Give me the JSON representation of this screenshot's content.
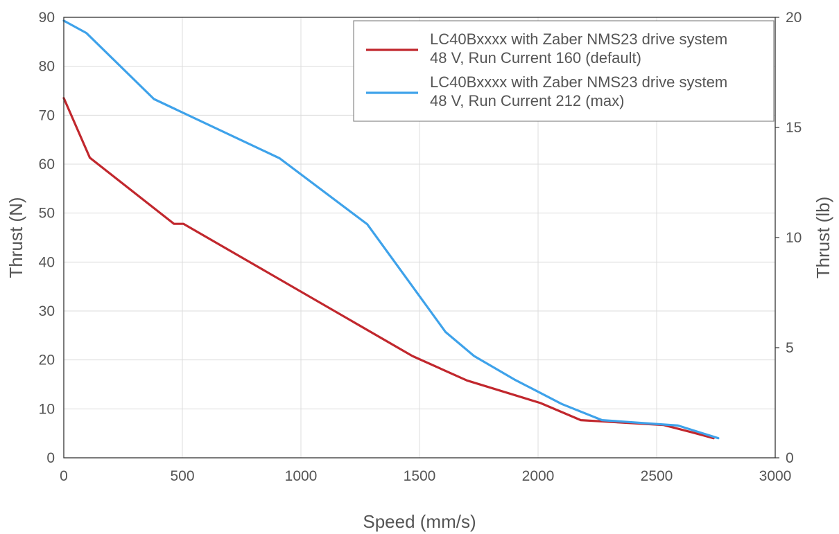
{
  "chart_data": {
    "type": "line",
    "xlabel": "Speed (mm/s)",
    "ylabel": "Thrust (N)",
    "y2label": "Thrust (lb)",
    "xlim": [
      0,
      3000
    ],
    "ylim": [
      0,
      90
    ],
    "y2lim": [
      0,
      20
    ],
    "xticks": [
      "0",
      "500",
      "1000",
      "1500",
      "2000",
      "2500",
      "3000"
    ],
    "yticks": [
      "0",
      "10",
      "20",
      "30",
      "40",
      "50",
      "60",
      "70",
      "80",
      "90"
    ],
    "y2ticks": [
      "0",
      "5",
      "10",
      "15",
      "20"
    ],
    "grid": true,
    "legend_position": "top-right",
    "series": [
      {
        "name": "LC40Bxxxx with Zaber NMS23 drive system\n48 V, Run Current 160 (default)",
        "legend_lines": [
          "LC40Bxxxx with Zaber NMS23 drive system",
          "48 V, Run Current 160 (default)"
        ],
        "color": "#c1272d",
        "x": [
          0,
          110,
          465,
          505,
          1470,
          1700,
          2010,
          2180,
          2530,
          2650,
          2740
        ],
        "y": [
          73.5,
          61.3,
          47.8,
          47.8,
          20.8,
          15.8,
          11.2,
          7.7,
          6.7,
          5.2,
          4.0
        ]
      },
      {
        "name": "LC40Bxxxx with Zaber NMS23 drive system\n48 V, Run Current 212 (max)",
        "legend_lines": [
          "LC40Bxxxx with Zaber NMS23 drive system",
          "48 V, Run Current 212 (max)"
        ],
        "color": "#3ea2ea",
        "x": [
          0,
          95,
          380,
          910,
          1280,
          1610,
          1730,
          1900,
          2100,
          2270,
          2590,
          2760
        ],
        "y": [
          89.3,
          86.8,
          73.3,
          61.2,
          47.7,
          25.7,
          20.8,
          16.0,
          11.0,
          7.7,
          6.6,
          4.0
        ]
      }
    ]
  }
}
